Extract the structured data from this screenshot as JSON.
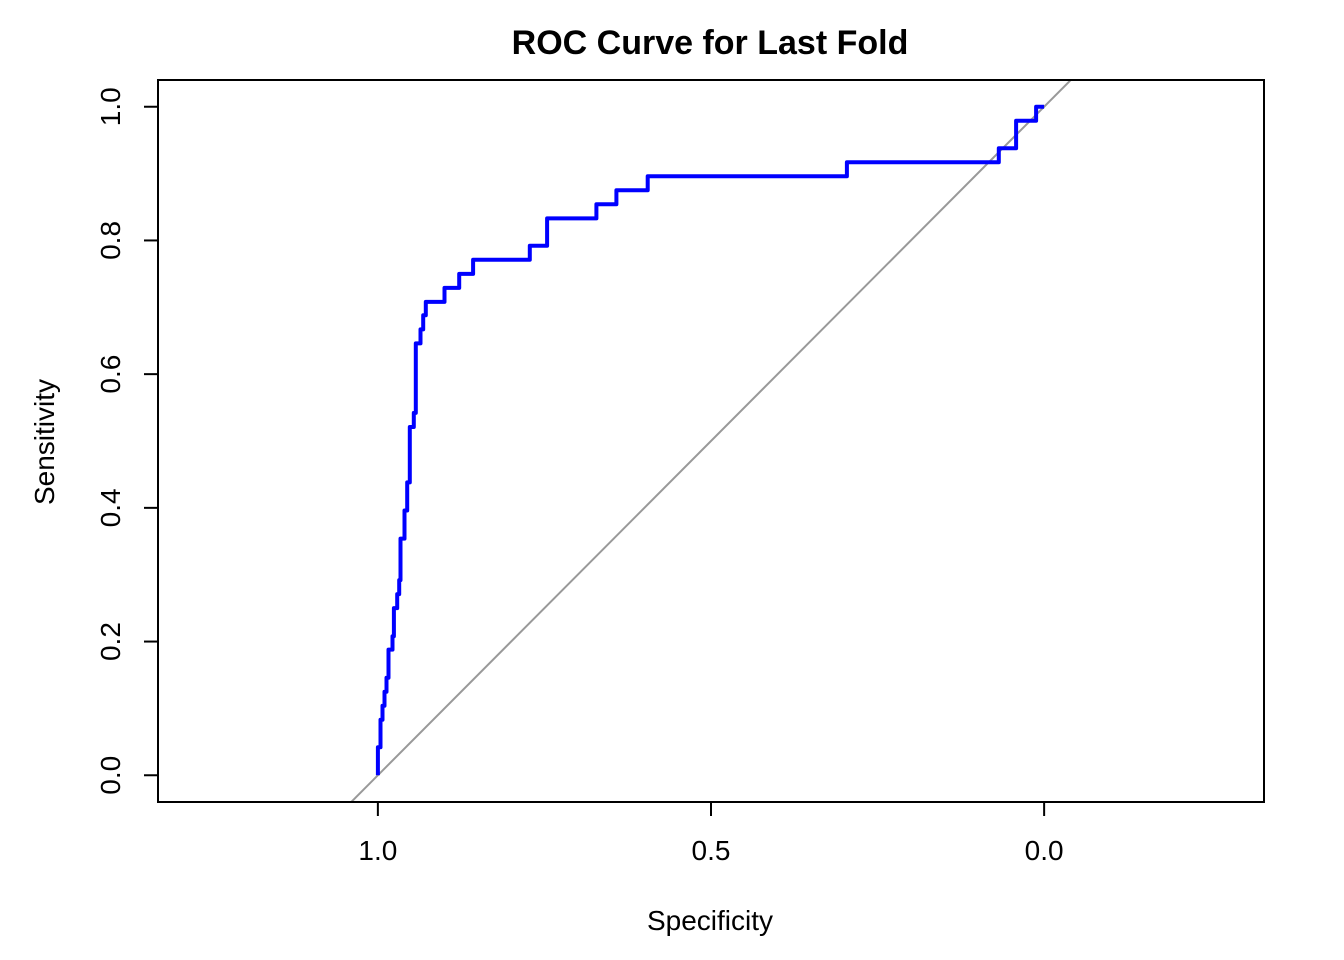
{
  "chart_data": {
    "type": "line",
    "title": "ROC Curve for Last Fold",
    "xlabel": "Specificity",
    "ylabel": "Sensitivity",
    "x_reversed": true,
    "xlim": [
      1.33,
      -0.33
    ],
    "ylim": [
      -0.04,
      1.04
    ],
    "xticks": [
      1.0,
      0.5,
      0.0
    ],
    "xtick_labels": [
      "1.0",
      "0.5",
      "0.0"
    ],
    "yticks": [
      0.0,
      0.2,
      0.4,
      0.6,
      0.8,
      1.0
    ],
    "ytick_labels": [
      "0.0",
      "0.2",
      "0.4",
      "0.6",
      "0.8",
      "1.0"
    ],
    "grid": false,
    "reference_line": {
      "color": "#999999",
      "from": [
        1.0,
        0.0
      ],
      "to": [
        0.0,
        1.0
      ]
    },
    "series": [
      {
        "color": "#0000ff",
        "points": [
          [
            1.0,
            0.0
          ],
          [
            1.0,
            0.042
          ],
          [
            0.996,
            0.042
          ],
          [
            0.996,
            0.083
          ],
          [
            0.993,
            0.083
          ],
          [
            0.993,
            0.104
          ],
          [
            0.99,
            0.104
          ],
          [
            0.99,
            0.125
          ],
          [
            0.987,
            0.125
          ],
          [
            0.987,
            0.146
          ],
          [
            0.984,
            0.146
          ],
          [
            0.984,
            0.188
          ],
          [
            0.978,
            0.188
          ],
          [
            0.978,
            0.208
          ],
          [
            0.976,
            0.208
          ],
          [
            0.976,
            0.25
          ],
          [
            0.971,
            0.25
          ],
          [
            0.971,
            0.271
          ],
          [
            0.968,
            0.271
          ],
          [
            0.968,
            0.292
          ],
          [
            0.966,
            0.292
          ],
          [
            0.966,
            0.354
          ],
          [
            0.96,
            0.354
          ],
          [
            0.96,
            0.396
          ],
          [
            0.956,
            0.396
          ],
          [
            0.956,
            0.438
          ],
          [
            0.952,
            0.438
          ],
          [
            0.952,
            0.521
          ],
          [
            0.946,
            0.521
          ],
          [
            0.946,
            0.542
          ],
          [
            0.943,
            0.542
          ],
          [
            0.943,
            0.646
          ],
          [
            0.936,
            0.646
          ],
          [
            0.936,
            0.667
          ],
          [
            0.932,
            0.667
          ],
          [
            0.932,
            0.688
          ],
          [
            0.928,
            0.688
          ],
          [
            0.928,
            0.708
          ],
          [
            0.9,
            0.708
          ],
          [
            0.9,
            0.729
          ],
          [
            0.878,
            0.729
          ],
          [
            0.878,
            0.75
          ],
          [
            0.857,
            0.75
          ],
          [
            0.857,
            0.771
          ],
          [
            0.772,
            0.771
          ],
          [
            0.772,
            0.792
          ],
          [
            0.746,
            0.792
          ],
          [
            0.746,
            0.833
          ],
          [
            0.672,
            0.833
          ],
          [
            0.672,
            0.854
          ],
          [
            0.642,
            0.854
          ],
          [
            0.642,
            0.875
          ],
          [
            0.595,
            0.875
          ],
          [
            0.595,
            0.896
          ],
          [
            0.296,
            0.896
          ],
          [
            0.296,
            0.917
          ],
          [
            0.068,
            0.917
          ],
          [
            0.068,
            0.938
          ],
          [
            0.042,
            0.938
          ],
          [
            0.042,
            0.979
          ],
          [
            0.012,
            0.979
          ],
          [
            0.012,
            1.0
          ],
          [
            0.0,
            1.0
          ]
        ]
      }
    ]
  }
}
